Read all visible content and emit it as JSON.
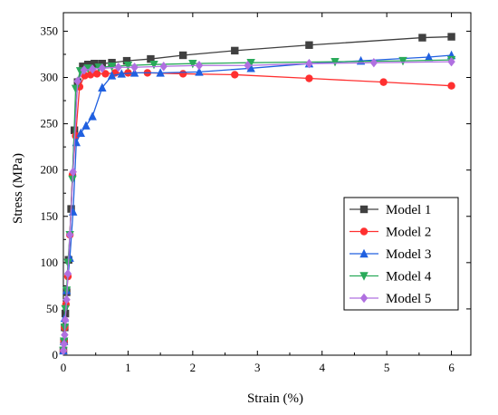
{
  "chart_data": {
    "type": "line",
    "xlabel": "Strain (%)",
    "ylabel": "Stress (MPa)",
    "xlim": [
      0,
      6.3
    ],
    "ylim": [
      0,
      370
    ],
    "xticks": [
      0,
      1,
      2,
      3,
      4,
      5,
      6
    ],
    "yticks": [
      0,
      50,
      100,
      150,
      200,
      250,
      300,
      350
    ],
    "grid": false,
    "legend_position": "bottom-right",
    "series": [
      {
        "name": "Model 1",
        "color": "#404040",
        "marker": "square",
        "x": [
          0.0,
          0.01,
          0.02,
          0.03,
          0.05,
          0.08,
          0.12,
          0.17,
          0.22,
          0.3,
          0.38,
          0.48,
          0.6,
          0.75,
          0.98,
          1.35,
          1.85,
          2.65,
          3.8,
          5.55,
          6.0
        ],
        "y": [
          5,
          15,
          30,
          45,
          68,
          103,
          158,
          243,
          295,
          312,
          314,
          315,
          315,
          316,
          318,
          320,
          324,
          329,
          335,
          343,
          344
        ]
      },
      {
        "name": "Model 2",
        "color": "#ff3030",
        "marker": "circle",
        "x": [
          0.0,
          0.01,
          0.02,
          0.04,
          0.07,
          0.1,
          0.14,
          0.19,
          0.25,
          0.33,
          0.42,
          0.52,
          0.65,
          0.8,
          1.0,
          1.3,
          1.85,
          2.65,
          3.8,
          4.95,
          6.0
        ],
        "y": [
          5,
          15,
          30,
          55,
          85,
          130,
          195,
          237,
          290,
          302,
          303,
          304,
          304,
          305,
          305,
          305,
          304,
          303,
          299,
          295,
          291
        ]
      },
      {
        "name": "Model 3",
        "color": "#2060e0",
        "marker": "triangle",
        "x": [
          0.0,
          0.01,
          0.02,
          0.05,
          0.1,
          0.15,
          0.2,
          0.27,
          0.35,
          0.45,
          0.6,
          0.75,
          0.9,
          1.1,
          1.5,
          2.1,
          2.9,
          3.8,
          4.6,
          5.65,
          6.0
        ],
        "y": [
          5,
          15,
          40,
          70,
          105,
          155,
          230,
          240,
          248,
          258,
          289,
          302,
          304,
          305,
          305,
          306,
          310,
          315,
          318,
          322,
          324
        ]
      },
      {
        "name": "Model 4",
        "color": "#2aaa5a",
        "marker": "triangle-down",
        "x": [
          0.0,
          0.01,
          0.02,
          0.03,
          0.05,
          0.07,
          0.1,
          0.14,
          0.19,
          0.26,
          0.38,
          0.55,
          0.75,
          1.0,
          1.4,
          2.0,
          2.9,
          4.2,
          5.25,
          6.0
        ],
        "y": [
          5,
          15,
          30,
          50,
          70,
          100,
          130,
          190,
          288,
          307,
          310,
          311,
          312,
          313,
          314,
          315,
          316,
          317,
          318,
          319
        ]
      },
      {
        "name": "Model 5",
        "color": "#b070e0",
        "marker": "diamond",
        "x": [
          0.0,
          0.01,
          0.02,
          0.03,
          0.05,
          0.07,
          0.1,
          0.15,
          0.22,
          0.32,
          0.45,
          0.6,
          0.85,
          1.1,
          1.55,
          2.1,
          2.85,
          3.8,
          4.8,
          6.0
        ],
        "y": [
          5,
          12,
          22,
          38,
          60,
          88,
          130,
          198,
          296,
          308,
          309,
          310,
          311,
          311,
          312,
          313,
          313,
          315,
          316,
          317
        ]
      }
    ]
  }
}
